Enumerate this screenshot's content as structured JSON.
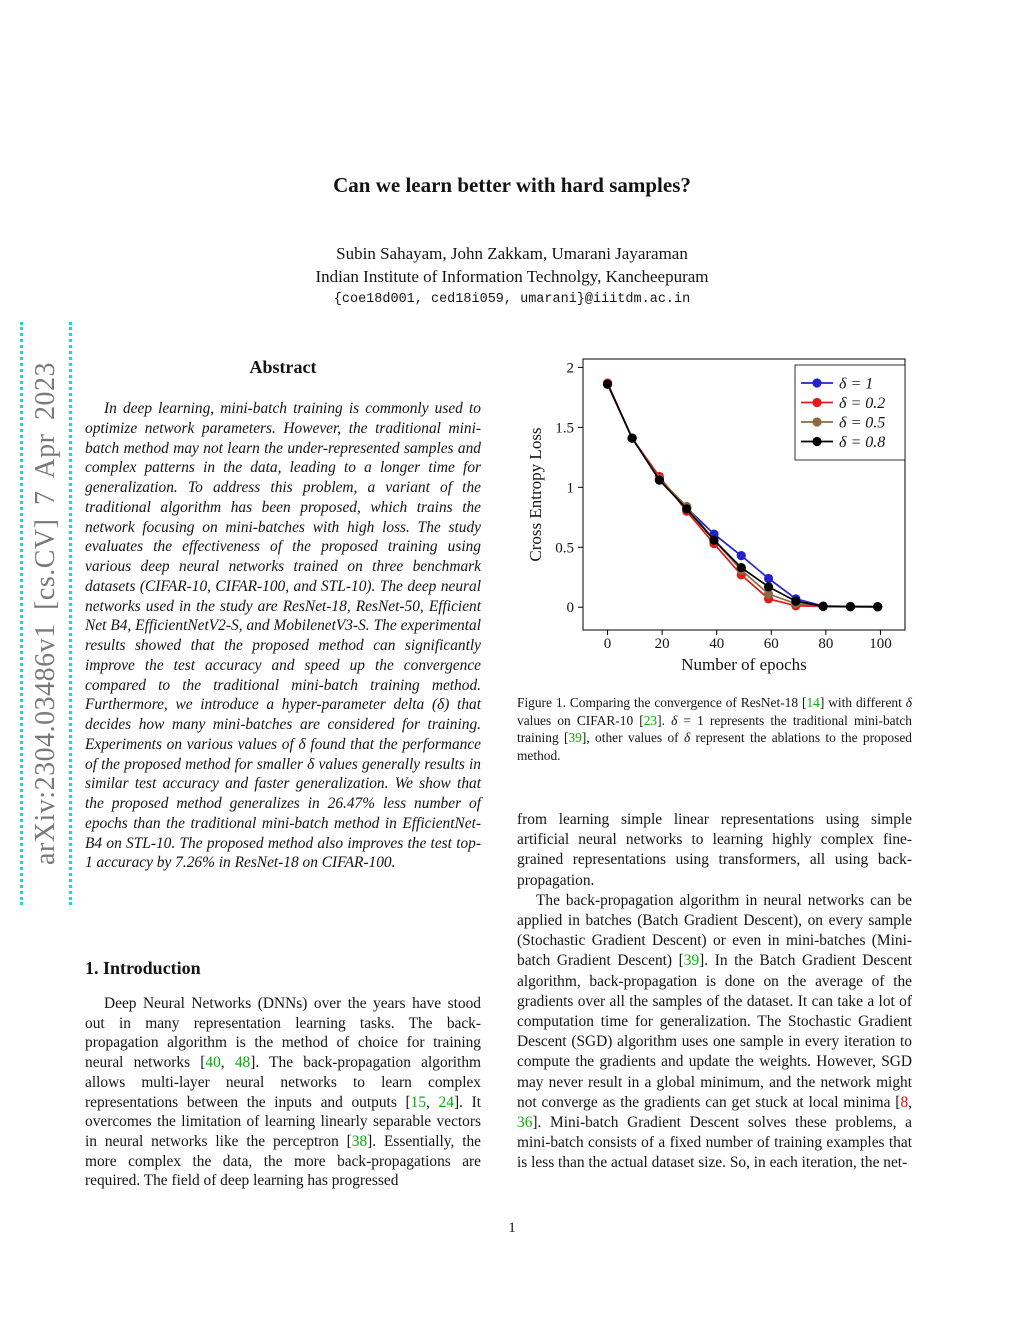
{
  "sidebar": {
    "watermark": "arXiv:2304.03486v1  [cs.CV]  7 Apr 2023"
  },
  "header": {
    "title": "Can we learn better with hard samples?",
    "authors": "Subin Sahayam, John Zakkam, Umarani Jayaraman",
    "affiliation": "Indian Institute of Information Technolgy, Kancheepuram",
    "email": "{coe18d001, ced18i059, umarani}@iiitdm.ac.in"
  },
  "abstract": {
    "heading": "Abstract",
    "body": "In deep learning, mini-batch training is commonly used to optimize network parameters. However, the traditional mini-batch method may not learn the under-represented samples and complex patterns in the data, leading to a longer time for generalization. To address this problem, a variant of the traditional algorithm has been proposed, which trains the network focusing on mini-batches with high loss. The study evaluates the effectiveness of the proposed training using various deep neural networks trained on three benchmark datasets (CIFAR-10, CIFAR-100, and STL-10). The deep neural networks used in the study are ResNet-18, ResNet-50, Efficient Net B4, EfficientNetV2-S, and MobilenetV3-S. The experimental results showed that the proposed method can significantly improve the test accuracy and speed up the convergence compared to the traditional mini-batch training method. Furthermore, we introduce a hyper-parameter delta (δ) that decides how many mini-batches are considered for training. Experiments on various values of δ found that the performance of the proposed method for smaller δ values generally results in similar test accuracy and faster generalization. We show that the proposed method generalizes in 26.47% less number of epochs than the traditional mini-batch method in EfficientNet-B4 on STL-10. The proposed method also improves the test top-1 accuracy by 7.26% in ResNet-18 on CIFAR-100."
  },
  "introduction": {
    "heading": "1. Introduction",
    "par1": [
      {
        "t": "Deep Neural Networks (DNNs) over the years have stood out in many representation learning tasks. The back-propagation algorithm is the method of choice for training neural networks ["
      },
      {
        "t": "40",
        "c": "g"
      },
      {
        "t": ", "
      },
      {
        "t": "48",
        "c": "g"
      },
      {
        "t": "]. The back-propagation algorithm allows multi-layer neural networks to learn complex representations between the inputs and outputs ["
      },
      {
        "t": "15",
        "c": "g"
      },
      {
        "t": ", "
      },
      {
        "t": "24",
        "c": "g"
      },
      {
        "t": "]. It overcomes the limitation of learning linearly separable vectors in neural networks like the perceptron ["
      },
      {
        "t": "38",
        "c": "g"
      },
      {
        "t": "]. Essentially, the more complex the data, the more back-propagations are required. The field of deep learning has progressed"
      }
    ]
  },
  "right_column": {
    "par1": [
      {
        "t": "from learning simple linear representations using simple artificial neural networks to learning highly complex fine-grained representations using transformers, all using back-propagation."
      }
    ],
    "par2": [
      {
        "t": "The back-propagation algorithm in neural networks can be applied in batches (Batch Gradient Descent), on every sample (Stochastic Gradient Descent) or even in mini-batches (Mini-batch Gradient Descent) ["
      },
      {
        "t": "39",
        "c": "g"
      },
      {
        "t": "]. In the Batch Gradient Descent algorithm, back-propagation is done on the average of the gradients over all the samples of the dataset. It can take a lot of computation time for generalization. The Stochastic Gradient Descent (SGD) algorithm uses one sample in every iteration to compute the gradients and update the weights. However, SGD may never result in a global minimum, and the network might not converge as the gradients can get stuck at local minima ["
      },
      {
        "t": "8",
        "c": "r"
      },
      {
        "t": ", "
      },
      {
        "t": "36",
        "c": "g"
      },
      {
        "t": "]. Mini-batch Gradient Descent solves these problems, a mini-batch consists of a fixed number of training examples that is less than the actual dataset size. So, in each iteration, the net-"
      }
    ]
  },
  "figure": {
    "caption": [
      {
        "t": "Figure 1. Comparing the convergence of ResNet-18 ["
      },
      {
        "t": "14",
        "c": "g"
      },
      {
        "t": "] with different "
      },
      {
        "t": "δ",
        "c": "m"
      },
      {
        "t": " values on CIFAR-10 ["
      },
      {
        "t": "23",
        "c": "g"
      },
      {
        "t": "]. "
      },
      {
        "t": "δ",
        "c": "m"
      },
      {
        "t": " = 1 represents the traditional mini-batch training ["
      },
      {
        "t": "39",
        "c": "g"
      },
      {
        "t": "], other values of "
      },
      {
        "t": "δ",
        "c": "m"
      },
      {
        "t": " represent the ablations to the proposed method."
      }
    ]
  },
  "footer": {
    "page_number": "1"
  },
  "colors": {
    "cite_green": "#00b000",
    "cite_red": "#f00505",
    "sidebar_text": "#7a7a7a",
    "sidebar_dots": "#10dcdc"
  },
  "chart_data": {
    "type": "line",
    "title": "",
    "xlabel": "Number of epochs",
    "ylabel": "Cross Entropy Loss",
    "xlim": [
      -9,
      109
    ],
    "ylim": [
      -0.19,
      2.07
    ],
    "xticks": [
      0,
      20,
      40,
      60,
      80,
      100
    ],
    "yticks": [
      0,
      0.5,
      1,
      1.5,
      2
    ],
    "ytick_labels": [
      "0",
      "0.5",
      "1",
      "1.5",
      "2"
    ],
    "grid": false,
    "legend_position": "top-right",
    "x": [
      0,
      9,
      19,
      29,
      39,
      49,
      59,
      69,
      79,
      89,
      99
    ],
    "series": [
      {
        "name": "δ = 1",
        "color": "#2323cd",
        "values": [
          1.86,
          1.41,
          1.07,
          0.83,
          0.61,
          0.43,
          0.24,
          0.07,
          0.01,
          0.006,
          0.005
        ]
      },
      {
        "name": "δ = 0.2",
        "color": "#e41a1a",
        "values": [
          1.87,
          1.41,
          1.09,
          0.8,
          0.53,
          0.27,
          0.07,
          0.012,
          0.006,
          0.004,
          0.003
        ]
      },
      {
        "name": "δ = 0.5",
        "color": "#8a6b45",
        "values": [
          1.86,
          1.41,
          1.07,
          0.84,
          0.56,
          0.31,
          0.11,
          0.03,
          0.007,
          0.005,
          0.004
        ]
      },
      {
        "name": "δ = 0.8",
        "color": "#000000",
        "values": [
          1.86,
          1.41,
          1.06,
          0.82,
          0.56,
          0.33,
          0.17,
          0.05,
          0.007,
          0.005,
          0.004
        ]
      }
    ]
  }
}
